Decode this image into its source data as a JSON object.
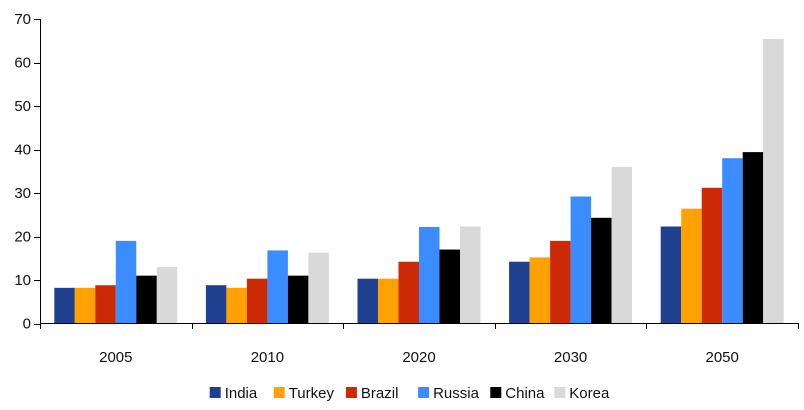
{
  "chart_data": {
    "type": "bar",
    "categories": [
      "2005",
      "2010",
      "2020",
      "2030",
      "2050"
    ],
    "series": [
      {
        "name": "India",
        "color": "#1f3f8f",
        "values": [
          8.2,
          8.8,
          10.3,
          14.2,
          22.3
        ]
      },
      {
        "name": "Turkey",
        "color": "#ffa200",
        "values": [
          8.2,
          8.2,
          10.3,
          15.2,
          26.4
        ]
      },
      {
        "name": "Brazil",
        "color": "#cc2a06",
        "values": [
          8.8,
          10.3,
          14.2,
          19.0,
          31.2
        ]
      },
      {
        "name": "Russia",
        "color": "#3b8cff",
        "values": [
          19.0,
          16.8,
          22.2,
          29.2,
          38.0
        ]
      },
      {
        "name": "China",
        "color": "#000000",
        "values": [
          11.0,
          11.0,
          17.0,
          24.3,
          39.4
        ]
      },
      {
        "name": "Korea",
        "color": "#d9d9d9",
        "values": [
          13.0,
          16.3,
          22.3,
          36.0,
          65.4
        ]
      }
    ],
    "ylim": [
      0,
      70
    ],
    "yticks": [
      "0",
      "10",
      "20",
      "30",
      "40",
      "50",
      "60",
      "70"
    ],
    "grid": false,
    "legend_position": "bottom"
  }
}
